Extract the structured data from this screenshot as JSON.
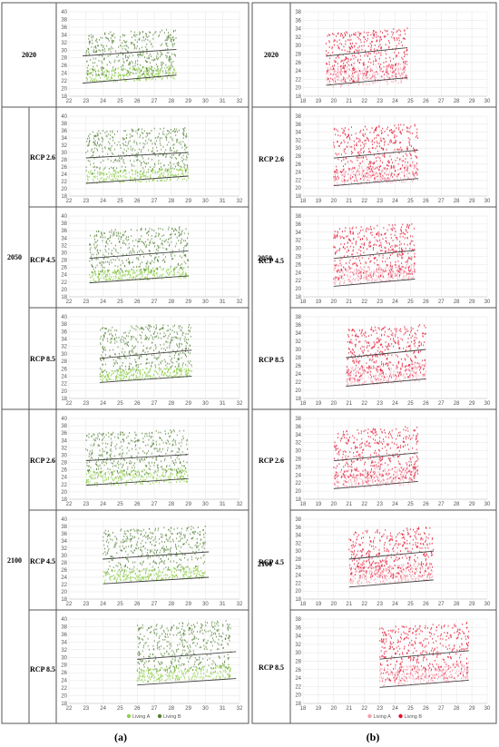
{
  "figure": {
    "panel_a_label": "(a)",
    "panel_b_label": "(b)",
    "periods": [
      "2020",
      "2050",
      "2100"
    ],
    "scenarios": [
      "RCP 2.6",
      "RCP 4.5",
      "RCP 8.5"
    ],
    "legend_a": [
      "Living A",
      "Living B"
    ],
    "legend_b": [
      "Living A",
      "Living B"
    ]
  },
  "colors": {
    "a_living_a": "#92d050",
    "a_living_b": "#548235",
    "b_living_a": "#f4a0b0",
    "b_living_b": "#e3102c",
    "trend": "#444444",
    "grid": "#e4e4e4",
    "border": "#555555"
  },
  "chart_data": [
    {
      "panel": "a",
      "period": "2020",
      "scenario": "",
      "type": "scatter",
      "xlim": [
        22,
        32
      ],
      "ylim": [
        18,
        40
      ],
      "xticks": [
        22,
        23,
        24,
        25,
        26,
        27,
        28,
        29,
        30,
        31,
        32
      ],
      "yticks": [
        18,
        20,
        22,
        24,
        26,
        28,
        30,
        32,
        34,
        36,
        38,
        40
      ],
      "series": [
        {
          "name": "Living A",
          "x_range": [
            23,
            28.3
          ],
          "y_range": [
            21.5,
            27
          ]
        },
        {
          "name": "Living B",
          "x_range": [
            23,
            28.3
          ],
          "y_range": [
            23,
            34.5
          ]
        }
      ],
      "trend_lines": [
        {
          "x": [
            22.8,
            28.3
          ],
          "y": [
            28.5,
            30.2
          ]
        },
        {
          "x": [
            22.8,
            28.3
          ],
          "y": [
            21.4,
            23.5
          ]
        }
      ]
    },
    {
      "panel": "a",
      "period": "2050",
      "scenario": "RCP 2.6",
      "type": "scatter",
      "xlim": [
        22,
        32
      ],
      "ylim": [
        18,
        40
      ],
      "xticks": [
        22,
        23,
        24,
        25,
        26,
        27,
        28,
        29,
        30,
        31,
        32
      ],
      "yticks": [
        18,
        20,
        22,
        24,
        26,
        28,
        30,
        32,
        34,
        36,
        38,
        40
      ],
      "series": [
        {
          "name": "Living A",
          "x_range": [
            23,
            29
          ],
          "y_range": [
            21.5,
            27
          ]
        },
        {
          "name": "Living B",
          "x_range": [
            23,
            29
          ],
          "y_range": [
            24,
            36
          ]
        }
      ],
      "trend_lines": [
        {
          "x": [
            23,
            29
          ],
          "y": [
            28.5,
            30
          ]
        },
        {
          "x": [
            23,
            29
          ],
          "y": [
            21.5,
            23.5
          ]
        }
      ]
    },
    {
      "panel": "a",
      "period": "2050",
      "scenario": "RCP 4.5",
      "type": "scatter",
      "xlim": [
        22,
        32
      ],
      "ylim": [
        18,
        40
      ],
      "xticks": [
        22,
        23,
        24,
        25,
        26,
        27,
        28,
        29,
        30,
        31,
        32
      ],
      "yticks": [
        18,
        20,
        22,
        24,
        26,
        28,
        30,
        32,
        34,
        36,
        38,
        40
      ],
      "series": [
        {
          "name": "Living A",
          "x_range": [
            23.2,
            29
          ],
          "y_range": [
            22,
            27
          ]
        },
        {
          "name": "Living B",
          "x_range": [
            23.2,
            29
          ],
          "y_range": [
            24,
            36
          ]
        }
      ],
      "trend_lines": [
        {
          "x": [
            23.2,
            29
          ],
          "y": [
            28.5,
            30.5
          ]
        },
        {
          "x": [
            23.2,
            29
          ],
          "y": [
            21.8,
            23.7
          ]
        }
      ]
    },
    {
      "panel": "a",
      "period": "2050",
      "scenario": "RCP 8.5",
      "type": "scatter",
      "xlim": [
        22,
        32
      ],
      "ylim": [
        18,
        40
      ],
      "xticks": [
        22,
        23,
        24,
        25,
        26,
        27,
        28,
        29,
        30,
        31,
        32
      ],
      "yticks": [
        18,
        20,
        22,
        24,
        26,
        28,
        30,
        32,
        34,
        36,
        38,
        40
      ],
      "series": [
        {
          "name": "Living A",
          "x_range": [
            23.8,
            29.2
          ],
          "y_range": [
            22.5,
            27.5
          ]
        },
        {
          "name": "Living B",
          "x_range": [
            23.8,
            29.2
          ],
          "y_range": [
            25,
            37
          ]
        }
      ],
      "trend_lines": [
        {
          "x": [
            23.8,
            29.2
          ],
          "y": [
            28.8,
            31
          ]
        },
        {
          "x": [
            23.8,
            29.2
          ],
          "y": [
            22.3,
            24
          ]
        }
      ]
    },
    {
      "panel": "a",
      "period": "2100",
      "scenario": "RCP 2.6",
      "type": "scatter",
      "xlim": [
        22,
        32
      ],
      "ylim": [
        18,
        40
      ],
      "xticks": [
        22,
        23,
        24,
        25,
        26,
        27,
        28,
        29,
        30,
        31,
        32
      ],
      "yticks": [
        18,
        20,
        22,
        24,
        26,
        28,
        30,
        32,
        34,
        36,
        38,
        40
      ],
      "series": [
        {
          "name": "Living A",
          "x_range": [
            23,
            29
          ],
          "y_range": [
            21.5,
            27.5
          ]
        },
        {
          "name": "Living B",
          "x_range": [
            23,
            29
          ],
          "y_range": [
            24,
            36
          ]
        }
      ],
      "trend_lines": [
        {
          "x": [
            23,
            29
          ],
          "y": [
            28.5,
            30.2
          ]
        },
        {
          "x": [
            23,
            29
          ],
          "y": [
            21.8,
            23.6
          ]
        }
      ]
    },
    {
      "panel": "a",
      "period": "2100",
      "scenario": "RCP 4.5",
      "type": "scatter",
      "xlim": [
        22,
        32
      ],
      "ylim": [
        18,
        40
      ],
      "xticks": [
        22,
        23,
        24,
        25,
        26,
        27,
        28,
        29,
        30,
        31,
        32
      ],
      "yticks": [
        18,
        20,
        22,
        24,
        26,
        28,
        30,
        32,
        34,
        36,
        38,
        40
      ],
      "series": [
        {
          "name": "Living A",
          "x_range": [
            24,
            30
          ],
          "y_range": [
            22.5,
            28
          ]
        },
        {
          "name": "Living B",
          "x_range": [
            24,
            30
          ],
          "y_range": [
            25,
            37
          ]
        }
      ],
      "trend_lines": [
        {
          "x": [
            24,
            30.2
          ],
          "y": [
            29,
            31
          ]
        },
        {
          "x": [
            24,
            30.2
          ],
          "y": [
            22.2,
            24
          ]
        }
      ]
    },
    {
      "panel": "a",
      "period": "2100",
      "scenario": "RCP 8.5",
      "type": "scatter",
      "xlim": [
        22,
        32
      ],
      "ylim": [
        18,
        40
      ],
      "xticks": [
        22,
        23,
        24,
        25,
        26,
        27,
        28,
        29,
        30,
        31,
        32
      ],
      "yticks": [
        18,
        20,
        22,
        24,
        26,
        28,
        30,
        32,
        34,
        36,
        38,
        40
      ],
      "series": [
        {
          "name": "Living A",
          "x_range": [
            26,
            31.5
          ],
          "y_range": [
            23.5,
            29
          ]
        },
        {
          "name": "Living B",
          "x_range": [
            26,
            31.5
          ],
          "y_range": [
            26,
            38.5
          ]
        }
      ],
      "trend_lines": [
        {
          "x": [
            26,
            31.8
          ],
          "y": [
            29.5,
            31.5
          ]
        },
        {
          "x": [
            26,
            31.8
          ],
          "y": [
            22.8,
            24.5
          ]
        }
      ]
    },
    {
      "panel": "b",
      "period": "2020",
      "scenario": "",
      "type": "scatter",
      "xlim": [
        18,
        30
      ],
      "ylim": [
        18,
        38
      ],
      "xticks": [
        18,
        19,
        20,
        21,
        22,
        23,
        24,
        25,
        26,
        27,
        28,
        29,
        30
      ],
      "yticks": [
        18,
        20,
        22,
        24,
        26,
        28,
        30,
        32,
        34,
        36,
        38
      ],
      "series": [
        {
          "name": "Living A",
          "x_range": [
            19.5,
            24.8
          ],
          "y_range": [
            20,
            27
          ]
        },
        {
          "name": "Living B",
          "x_range": [
            19.5,
            24.8
          ],
          "y_range": [
            21,
            33
          ]
        }
      ],
      "trend_lines": [
        {
          "x": [
            19.5,
            24.8
          ],
          "y": [
            27.5,
            29.5
          ]
        },
        {
          "x": [
            19.5,
            24.8
          ],
          "y": [
            20.6,
            22.4
          ]
        }
      ]
    },
    {
      "panel": "b",
      "period": "2050",
      "scenario": "RCP 2.6",
      "type": "scatter",
      "xlim": [
        18,
        30
      ],
      "ylim": [
        18,
        38
      ],
      "xticks": [
        18,
        19,
        20,
        21,
        22,
        23,
        24,
        25,
        26,
        27,
        28,
        29,
        30
      ],
      "yticks": [
        18,
        20,
        22,
        24,
        26,
        28,
        30,
        32,
        34,
        36,
        38
      ],
      "series": [
        {
          "name": "Living A",
          "x_range": [
            20,
            25.5
          ],
          "y_range": [
            20.5,
            27
          ]
        },
        {
          "name": "Living B",
          "x_range": [
            20,
            25.5
          ],
          "y_range": [
            21.5,
            35
          ]
        }
      ],
      "trend_lines": [
        {
          "x": [
            20,
            25.5
          ],
          "y": [
            27.5,
            29.5
          ]
        },
        {
          "x": [
            20,
            25.5
          ],
          "y": [
            20.6,
            22.4
          ]
        }
      ]
    },
    {
      "panel": "b",
      "period": "2050",
      "scenario": "RCP 4.5",
      "type": "scatter",
      "xlim": [
        18,
        30
      ],
      "ylim": [
        18,
        38
      ],
      "xticks": [
        18,
        19,
        20,
        21,
        22,
        23,
        24,
        25,
        26,
        27,
        28,
        29,
        30
      ],
      "yticks": [
        18,
        20,
        22,
        24,
        26,
        28,
        30,
        32,
        34,
        36,
        38
      ],
      "series": [
        {
          "name": "Living A",
          "x_range": [
            20,
            25.3
          ],
          "y_range": [
            21,
            27
          ]
        },
        {
          "name": "Living B",
          "x_range": [
            20,
            25.3
          ],
          "y_range": [
            22,
            35
          ]
        }
      ],
      "trend_lines": [
        {
          "x": [
            20,
            25.3
          ],
          "y": [
            27.5,
            29.5
          ]
        },
        {
          "x": [
            20,
            25.3
          ],
          "y": [
            20.6,
            22.4
          ]
        }
      ]
    },
    {
      "panel": "b",
      "period": "2050",
      "scenario": "RCP 8.5",
      "type": "scatter",
      "xlim": [
        18,
        30
      ],
      "ylim": [
        18,
        38
      ],
      "xticks": [
        18,
        19,
        20,
        21,
        22,
        23,
        24,
        25,
        26,
        27,
        28,
        29,
        30
      ],
      "yticks": [
        18,
        20,
        22,
        24,
        26,
        28,
        30,
        32,
        34,
        36,
        38
      ],
      "series": [
        {
          "name": "Living A",
          "x_range": [
            20.8,
            26
          ],
          "y_range": [
            21,
            27.5
          ]
        },
        {
          "name": "Living B",
          "x_range": [
            20.8,
            26
          ],
          "y_range": [
            22,
            35
          ]
        }
      ],
      "trend_lines": [
        {
          "x": [
            20.8,
            26
          ],
          "y": [
            28,
            30
          ]
        },
        {
          "x": [
            20.8,
            26
          ],
          "y": [
            21,
            22.8
          ]
        }
      ]
    },
    {
      "panel": "b",
      "period": "2100",
      "scenario": "RCP 2.6",
      "type": "scatter",
      "xlim": [
        18,
        30
      ],
      "ylim": [
        18,
        38
      ],
      "xticks": [
        18,
        19,
        20,
        21,
        22,
        23,
        24,
        25,
        26,
        27,
        28,
        29,
        30
      ],
      "yticks": [
        18,
        20,
        22,
        24,
        26,
        28,
        30,
        32,
        34,
        36,
        38
      ],
      "series": [
        {
          "name": "Living A",
          "x_range": [
            20,
            25.5
          ],
          "y_range": [
            20.5,
            27
          ]
        },
        {
          "name": "Living B",
          "x_range": [
            20,
            25.5
          ],
          "y_range": [
            21.5,
            35
          ]
        }
      ],
      "trend_lines": [
        {
          "x": [
            20,
            25.5
          ],
          "y": [
            27.5,
            29.5
          ]
        },
        {
          "x": [
            20,
            25.5
          ],
          "y": [
            20.6,
            22.4
          ]
        }
      ]
    },
    {
      "panel": "b",
      "period": "2100",
      "scenario": "RCP 4.5",
      "type": "scatter",
      "xlim": [
        18,
        30
      ],
      "ylim": [
        18,
        38
      ],
      "xticks": [
        18,
        19,
        20,
        21,
        22,
        23,
        24,
        25,
        26,
        27,
        28,
        29,
        30
      ],
      "yticks": [
        18,
        20,
        22,
        24,
        26,
        28,
        30,
        32,
        34,
        36,
        38
      ],
      "series": [
        {
          "name": "Living A",
          "x_range": [
            21,
            26.5
          ],
          "y_range": [
            21.5,
            28
          ]
        },
        {
          "name": "Living B",
          "x_range": [
            21,
            26.5
          ],
          "y_range": [
            22.5,
            35
          ]
        }
      ],
      "trend_lines": [
        {
          "x": [
            21,
            26.5
          ],
          "y": [
            28,
            30
          ]
        },
        {
          "x": [
            21,
            26.5
          ],
          "y": [
            21,
            22.8
          ]
        }
      ]
    },
    {
      "panel": "b",
      "period": "2100",
      "scenario": "RCP 8.5",
      "type": "scatter",
      "xlim": [
        18,
        30
      ],
      "ylim": [
        18,
        38
      ],
      "xticks": [
        18,
        19,
        20,
        21,
        22,
        23,
        24,
        25,
        26,
        27,
        28,
        29,
        30
      ],
      "yticks": [
        18,
        20,
        22,
        24,
        26,
        28,
        30,
        32,
        34,
        36,
        38
      ],
      "series": [
        {
          "name": "Living A",
          "x_range": [
            23,
            28.8
          ],
          "y_range": [
            22,
            28.5
          ]
        },
        {
          "name": "Living B",
          "x_range": [
            23,
            28.8
          ],
          "y_range": [
            23,
            36
          ]
        }
      ],
      "trend_lines": [
        {
          "x": [
            23,
            28.8
          ],
          "y": [
            28.5,
            30.5
          ]
        },
        {
          "x": [
            23,
            28.8
          ],
          "y": [
            21.8,
            23.5
          ]
        }
      ]
    }
  ]
}
